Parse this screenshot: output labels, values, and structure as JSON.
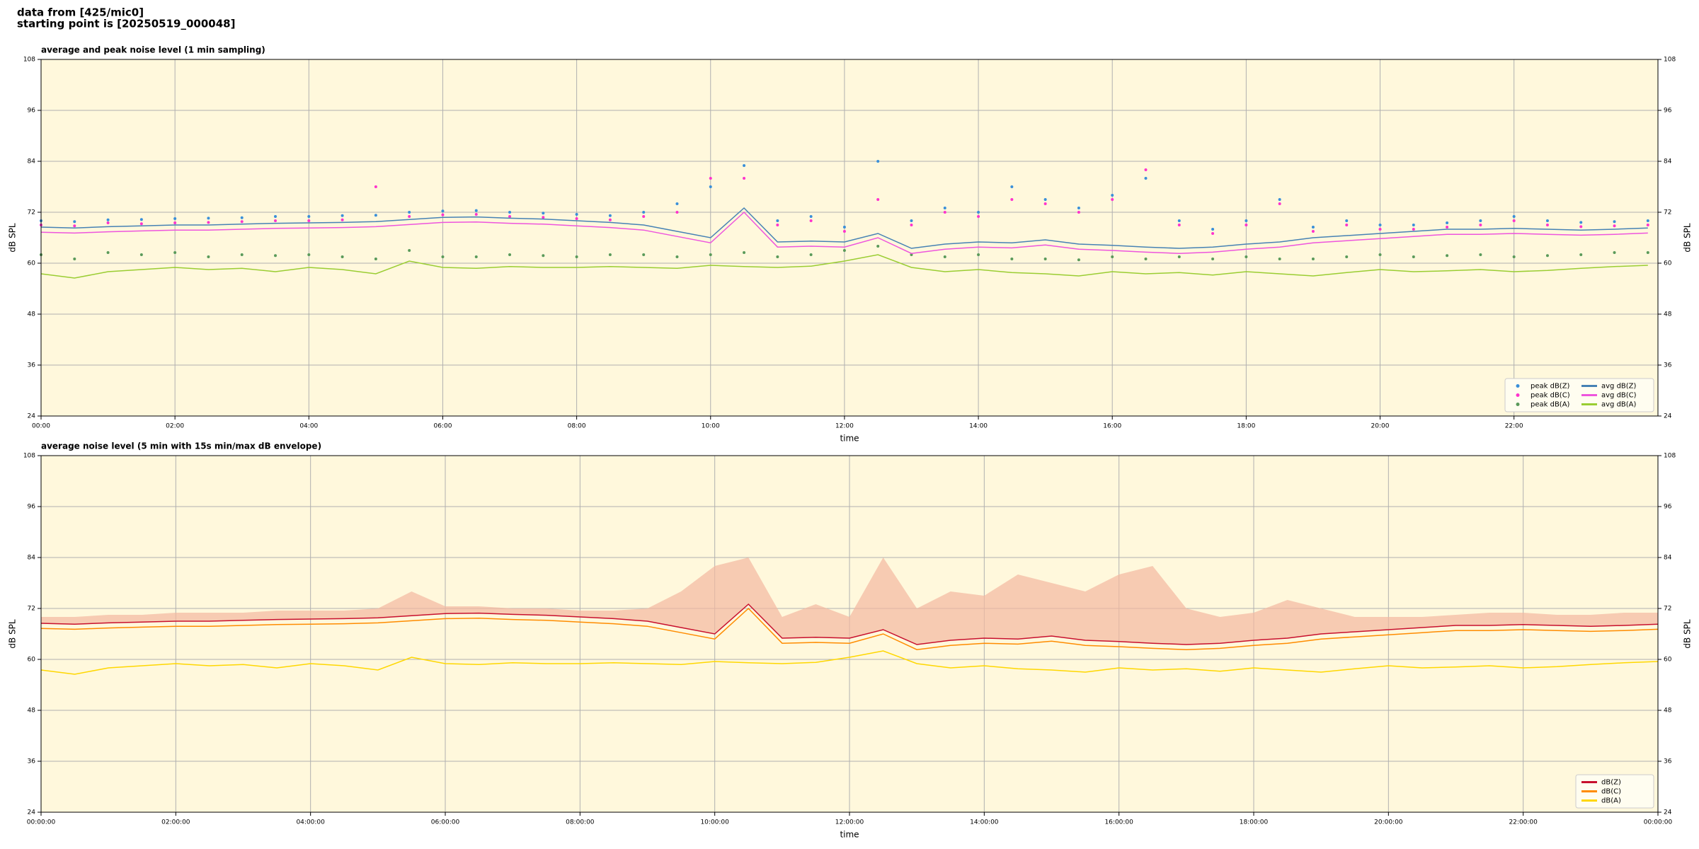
{
  "header": [
    "data from [425/mic0]",
    "starting point is [20250519_000048]"
  ],
  "chart_data": [
    {
      "type": "line",
      "title": "average and peak noise level (1 min sampling)",
      "xlabel": "time",
      "ylabel": "dB SPL",
      "xlim": [
        0,
        24.15
      ],
      "ylim": [
        24,
        108
      ],
      "xticks": [
        {
          "value": 0,
          "label": "00:00"
        },
        {
          "value": 2,
          "label": "02:00"
        },
        {
          "value": 4,
          "label": "04:00"
        },
        {
          "value": 6,
          "label": "06:00"
        },
        {
          "value": 8,
          "label": "08:00"
        },
        {
          "value": 10,
          "label": "10:00"
        },
        {
          "value": 12,
          "label": "12:00"
        },
        {
          "value": 14,
          "label": "14:00"
        },
        {
          "value": 16,
          "label": "16:00"
        },
        {
          "value": 18,
          "label": "18:00"
        },
        {
          "value": 20,
          "label": "20:00"
        },
        {
          "value": 22,
          "label": "22:00"
        }
      ],
      "yticks": [
        24,
        36,
        48,
        60,
        72,
        84,
        96,
        108
      ],
      "grid": true,
      "legend": "lower right",
      "legend_columns": 2,
      "background": "#fff8dc",
      "x": [
        0,
        0.5,
        1,
        1.5,
        2,
        2.5,
        3,
        3.5,
        4,
        4.5,
        5,
        5.5,
        6,
        6.5,
        7,
        7.5,
        8,
        8.5,
        9,
        9.5,
        10,
        10.5,
        11,
        11.5,
        12,
        12.5,
        13,
        13.5,
        14,
        14.5,
        15,
        15.5,
        16,
        16.5,
        17,
        17.5,
        18,
        18.5,
        19,
        19.5,
        20,
        20.5,
        21,
        21.5,
        22,
        22.5,
        23,
        23.5,
        24
      ],
      "series": [
        {
          "name": "peak dB(Z)",
          "type": "scatter",
          "color": "#3a8fd9",
          "values": [
            70,
            69.8,
            70.2,
            70.3,
            70.5,
            70.6,
            70.7,
            71,
            71,
            71.2,
            71.3,
            72,
            72.3,
            72.4,
            72,
            71.8,
            71.5,
            71.2,
            72,
            74,
            78,
            83,
            70,
            71,
            68.5,
            84,
            70,
            73,
            72,
            78,
            75,
            73,
            76,
            80,
            70,
            68,
            70,
            75,
            68.5,
            70,
            69,
            69,
            69.5,
            70,
            71,
            70,
            69.6,
            69.8,
            70
          ]
        },
        {
          "name": "peak dB(C)",
          "type": "scatter",
          "color": "#ff33cc",
          "values": [
            69,
            68.8,
            69.5,
            69.3,
            69.5,
            69.6,
            69.8,
            70,
            70,
            70.2,
            78,
            71,
            71.4,
            71.5,
            71,
            70.8,
            70.5,
            70.2,
            71,
            72,
            80,
            80,
            69,
            70,
            67.5,
            75,
            69,
            72,
            71,
            75,
            74,
            72,
            75,
            82,
            69,
            67,
            69,
            74,
            67.5,
            69,
            68,
            68,
            68.5,
            69,
            70,
            69,
            68.6,
            68.8,
            69
          ]
        },
        {
          "name": "peak dB(A)",
          "type": "scatter",
          "color": "#5a9a5a",
          "values": [
            62,
            61,
            62.5,
            62,
            62.5,
            61.5,
            62,
            61.8,
            62,
            61.5,
            61,
            63,
            61.5,
            61.5,
            62,
            61.8,
            61.5,
            62,
            62,
            61.5,
            62,
            62.5,
            61.5,
            62,
            63,
            64,
            62,
            61.5,
            62,
            61,
            61,
            60.8,
            61.5,
            61,
            61.5,
            61,
            61.5,
            61,
            61,
            61.5,
            62,
            61.5,
            61.8,
            62,
            61.5,
            61.8,
            62,
            62.5,
            62.5
          ]
        },
        {
          "name": "avg dB(Z)",
          "type": "line",
          "color": "#4682b4",
          "values": [
            68.5,
            68.3,
            68.6,
            68.8,
            69,
            69,
            69.2,
            69.4,
            69.5,
            69.6,
            69.8,
            70.3,
            70.8,
            70.9,
            70.6,
            70.4,
            70,
            69.6,
            69,
            67.5,
            66,
            73,
            65,
            65.2,
            65,
            67,
            63.5,
            64.5,
            65,
            64.8,
            65.5,
            64.5,
            64.2,
            63.8,
            63.5,
            63.8,
            64.5,
            65,
            66,
            66.5,
            67,
            67.5,
            68,
            68,
            68.2,
            68,
            67.8,
            68,
            68.3
          ]
        },
        {
          "name": "avg dB(C)",
          "type": "line",
          "color": "#ee55dd",
          "values": [
            67.3,
            67.1,
            67.4,
            67.6,
            67.8,
            67.8,
            68,
            68.2,
            68.3,
            68.4,
            68.6,
            69.1,
            69.6,
            69.7,
            69.4,
            69.2,
            68.8,
            68.4,
            67.8,
            66.3,
            64.8,
            72,
            63.8,
            64,
            63.8,
            66,
            62.3,
            63.3,
            63.8,
            63.6,
            64.3,
            63.3,
            63,
            62.6,
            62.3,
            62.6,
            63.3,
            63.8,
            64.8,
            65.3,
            65.8,
            66.3,
            66.8,
            66.8,
            67,
            66.8,
            66.6,
            66.8,
            67.1
          ]
        },
        {
          "name": "avg dB(A)",
          "type": "line",
          "color": "#9acd32",
          "values": [
            57.5,
            56.5,
            58,
            58.5,
            59,
            58.5,
            58.8,
            58,
            59,
            58.5,
            57.5,
            60.5,
            59,
            58.8,
            59.2,
            59,
            59,
            59.2,
            59,
            58.8,
            59.5,
            59.2,
            59,
            59.3,
            60.5,
            62,
            59,
            58,
            58.5,
            57.8,
            57.5,
            57,
            58,
            57.5,
            57.8,
            57.2,
            58,
            57.5,
            57,
            57.8,
            58.5,
            58,
            58.2,
            58.5,
            58,
            58.3,
            58.8,
            59.2,
            59.5
          ]
        }
      ]
    },
    {
      "type": "line",
      "title": "average noise level (5 min with 15s min/max dB envelope)",
      "xlabel": "time",
      "ylabel": "dB SPL",
      "xlim": [
        0,
        24
      ],
      "ylim": [
        24,
        108
      ],
      "xticks": [
        {
          "value": 0,
          "label": "00:00:00"
        },
        {
          "value": 2,
          "label": "02:00:00"
        },
        {
          "value": 4,
          "label": "04:00:00"
        },
        {
          "value": 6,
          "label": "06:00:00"
        },
        {
          "value": 8,
          "label": "08:00:00"
        },
        {
          "value": 10,
          "label": "10:00:00"
        },
        {
          "value": 12,
          "label": "12:00:00"
        },
        {
          "value": 14,
          "label": "14:00:00"
        },
        {
          "value": 16,
          "label": "16:00:00"
        },
        {
          "value": 18,
          "label": "18:00:00"
        },
        {
          "value": 20,
          "label": "20:00:00"
        },
        {
          "value": 22,
          "label": "22:00:00"
        },
        {
          "value": 24,
          "label": "00:00:00"
        }
      ],
      "yticks": [
        24,
        36,
        48,
        60,
        72,
        84,
        96,
        108
      ],
      "grid": true,
      "legend": "lower right",
      "legend_columns": 1,
      "background": "#fff8dc",
      "x": [
        0,
        0.5,
        1,
        1.5,
        2,
        2.5,
        3,
        3.5,
        4,
        4.5,
        5,
        5.5,
        6,
        6.5,
        7,
        7.5,
        8,
        8.5,
        9,
        9.5,
        10,
        10.5,
        11,
        11.5,
        12,
        12.5,
        13,
        13.5,
        14,
        14.5,
        15,
        15.5,
        16,
        16.5,
        17,
        17.5,
        18,
        18.5,
        19,
        19.5,
        20,
        20.5,
        21,
        21.5,
        22,
        22.5,
        23,
        23.5,
        24
      ],
      "series": [
        {
          "name": "dB(Z)",
          "type": "line",
          "color": "#c8102e",
          "envelope_color": "#f4b8a0",
          "values": [
            68.5,
            68.3,
            68.6,
            68.8,
            69,
            69,
            69.2,
            69.4,
            69.5,
            69.6,
            69.8,
            70.3,
            70.8,
            70.9,
            70.6,
            70.4,
            70,
            69.6,
            69,
            67.5,
            66,
            73,
            65,
            65.2,
            65,
            67,
            63.5,
            64.5,
            65,
            64.8,
            65.5,
            64.5,
            64.2,
            63.8,
            63.5,
            63.8,
            64.5,
            65,
            66,
            66.5,
            67,
            67.5,
            68,
            68,
            68.2,
            68,
            67.8,
            68,
            68.3
          ],
          "max_values": [
            70,
            70,
            70.5,
            70.5,
            71,
            71,
            71,
            71.5,
            71.5,
            71.5,
            72,
            76,
            72.5,
            72.5,
            72,
            72,
            71.5,
            71.5,
            72,
            76,
            82,
            84,
            70,
            73,
            70,
            84,
            72,
            76,
            75,
            80,
            78,
            76,
            80,
            82,
            72,
            70,
            71,
            74,
            72,
            70,
            70,
            70,
            70.5,
            71,
            71,
            70.5,
            70.5,
            71,
            71
          ]
        },
        {
          "name": "dB(C)",
          "type": "line",
          "color": "#ff8c00",
          "values": [
            67.3,
            67.1,
            67.4,
            67.6,
            67.8,
            67.8,
            68,
            68.2,
            68.3,
            68.4,
            68.6,
            69.1,
            69.6,
            69.7,
            69.4,
            69.2,
            68.8,
            68.4,
            67.8,
            66.3,
            64.8,
            72,
            63.8,
            64,
            63.8,
            66,
            62.3,
            63.3,
            63.8,
            63.6,
            64.3,
            63.3,
            63,
            62.6,
            62.3,
            62.6,
            63.3,
            63.8,
            64.8,
            65.3,
            65.8,
            66.3,
            66.8,
            66.8,
            67,
            66.8,
            66.6,
            66.8,
            67.1
          ]
        },
        {
          "name": "dB(A)",
          "type": "line",
          "color": "#ffd700",
          "values": [
            57.5,
            56.5,
            58,
            58.5,
            59,
            58.5,
            58.8,
            58,
            59,
            58.5,
            57.5,
            60.5,
            59,
            58.8,
            59.2,
            59,
            59,
            59.2,
            59,
            58.8,
            59.5,
            59.2,
            59,
            59.3,
            60.5,
            62,
            59,
            58,
            58.5,
            57.8,
            57.5,
            57,
            58,
            57.5,
            57.8,
            57.2,
            58,
            57.5,
            57,
            57.8,
            58.5,
            58,
            58.2,
            58.5,
            58,
            58.3,
            58.8,
            59.2,
            59.5
          ]
        }
      ]
    }
  ]
}
